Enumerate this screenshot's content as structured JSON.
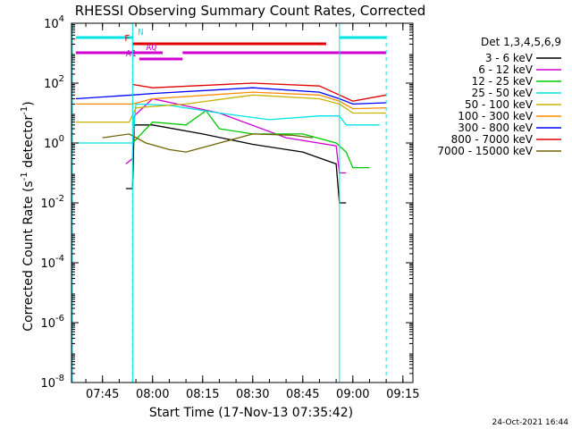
{
  "chart_data": {
    "type": "line",
    "title": "RHESSI Observing Summary Count Rates, Corrected",
    "xlabel": "Start Time (17-Nov-13 07:35:42)",
    "ylabel": "Corrected Count Rate (s^-1 detector^-1)",
    "ylabel_main": "Corrected Count Rate (s",
    "ylabel_sup": "-1",
    "ylabel_mid": " detector",
    "ylabel_sup2": "-1",
    "ylabel_end": ")",
    "scale": "log",
    "xlim": [
      "07:35:42",
      "09:18:00"
    ],
    "ylim": [
      1e-08,
      10000
    ],
    "xticks": [
      "07:45",
      "08:00",
      "08:15",
      "08:30",
      "08:45",
      "09:00",
      "09:15"
    ],
    "yticks": [
      {
        "value": 10000,
        "base": "10",
        "exp": "4"
      },
      {
        "value": 100,
        "base": "10",
        "exp": "2"
      },
      {
        "value": 1,
        "base": "10",
        "exp": "0"
      },
      {
        "value": 0.01,
        "base": "10",
        "exp": "-2"
      },
      {
        "value": 0.0001,
        "base": "10",
        "exp": "-4"
      },
      {
        "value": 1e-06,
        "base": "10",
        "exp": "-6"
      },
      {
        "value": 1e-08,
        "base": "10",
        "exp": "-8"
      }
    ],
    "legend_title": "Det 1,3,4,5,6,9",
    "legend_position": "right",
    "night_boundaries": [
      "07:54:00",
      "08:56:00"
    ],
    "night_dashed": [
      "07:54:00",
      "09:10:00"
    ],
    "flag_bars": [
      {
        "label": "N",
        "color": "#00e5e5",
        "segments": [
          [
            "07:37:00",
            "07:54:00"
          ],
          [
            "08:56:00",
            "09:10:00"
          ]
        ]
      },
      {
        "label": "F",
        "color": "#e00000",
        "segments": [
          [
            "07:54:00",
            "08:52:00"
          ]
        ]
      },
      {
        "label": "AQ",
        "color": "#d000d0",
        "segments": [
          [
            "07:37:00",
            "08:03:00"
          ],
          [
            "08:09:00",
            "09:10:00"
          ]
        ]
      },
      {
        "label": "A1",
        "color": "#d000d0",
        "segments": [
          [
            "07:56:00",
            "08:09:00"
          ]
        ]
      }
    ],
    "series": [
      {
        "name": "3 - 6 keV",
        "color": "#000000",
        "points": [
          [
            "07:52:00",
            0.03
          ],
          [
            "07:54:00",
            0.03
          ],
          [
            "07:54:30",
            4.0
          ],
          [
            "08:00:00",
            4.0
          ],
          [
            "08:15:00",
            2.0
          ],
          [
            "08:30:00",
            0.9
          ],
          [
            "08:45:00",
            0.5
          ],
          [
            "08:55:00",
            0.2
          ],
          [
            "08:56:00",
            0.01
          ],
          [
            "08:58:00",
            0.01
          ]
        ]
      },
      {
        "name": "6 - 12 keV",
        "color": "#d000d0",
        "points": [
          [
            "07:52:00",
            0.2
          ],
          [
            "07:54:00",
            0.3
          ],
          [
            "07:54:30",
            8.0
          ],
          [
            "08:00:00",
            30.0
          ],
          [
            "08:20:00",
            10.0
          ],
          [
            "08:40:00",
            1.5
          ],
          [
            "08:55:00",
            0.8
          ],
          [
            "08:56:00",
            0.1
          ],
          [
            "08:58:00",
            0.1
          ]
        ]
      },
      {
        "name": "12 - 25 keV",
        "color": "#00c800",
        "points": [
          [
            "07:54:00",
            1.0
          ],
          [
            "08:00:00",
            5.0
          ],
          [
            "08:10:00",
            4.0
          ],
          [
            "08:16:00",
            12.0
          ],
          [
            "08:20:00",
            3.0
          ],
          [
            "08:30:00",
            2.0
          ],
          [
            "08:45:00",
            2.0
          ],
          [
            "08:55:00",
            1.0
          ],
          [
            "08:58:00",
            0.5
          ],
          [
            "09:00:00",
            0.15
          ],
          [
            "09:05:00",
            0.15
          ]
        ]
      },
      {
        "name": "25 - 50 keV",
        "color": "#00e5e5",
        "points": [
          [
            "07:37:00",
            1.0
          ],
          [
            "07:54:00",
            1.0
          ],
          [
            "07:55:00",
            20.0
          ],
          [
            "08:05:00",
            18.0
          ],
          [
            "08:20:00",
            10.0
          ],
          [
            "08:35:00",
            6.0
          ],
          [
            "08:50:00",
            8.0
          ],
          [
            "08:56:00",
            8.0
          ],
          [
            "08:58:00",
            4.0
          ],
          [
            "09:08:00",
            4.0
          ]
        ]
      },
      {
        "name": "50 - 100 keV",
        "color": "#c8b400",
        "points": [
          [
            "07:37:00",
            5.0
          ],
          [
            "07:53:00",
            5.0
          ],
          [
            "07:55:00",
            15.0
          ],
          [
            "08:10:00",
            20.0
          ],
          [
            "08:30:00",
            40.0
          ],
          [
            "08:50:00",
            30.0
          ],
          [
            "08:56:00",
            20.0
          ],
          [
            "09:00:00",
            10.0
          ],
          [
            "09:10:00",
            10.0
          ]
        ]
      },
      {
        "name": "100 - 300 keV",
        "color": "#ff8c00",
        "points": [
          [
            "07:37:00",
            20.0
          ],
          [
            "07:54:00",
            20.0
          ],
          [
            "08:00:00",
            30.0
          ],
          [
            "08:30:00",
            50.0
          ],
          [
            "08:50:00",
            40.0
          ],
          [
            "08:56:00",
            25.0
          ],
          [
            "09:00:00",
            14.0
          ],
          [
            "09:10:00",
            15.0
          ]
        ]
      },
      {
        "name": "300 - 800 keV",
        "color": "#0000ff",
        "points": [
          [
            "07:37:00",
            30.0
          ],
          [
            "07:54:00",
            40.0
          ],
          [
            "08:00:00",
            45.0
          ],
          [
            "08:30:00",
            70.0
          ],
          [
            "08:50:00",
            50.0
          ],
          [
            "08:56:00",
            30.0
          ],
          [
            "09:00:00",
            20.0
          ],
          [
            "09:10:00",
            22.0
          ]
        ]
      },
      {
        "name": "800 - 7000 keV",
        "color": "#e00000",
        "points": [
          [
            "07:54:00",
            90.0
          ],
          [
            "08:00:00",
            70.0
          ],
          [
            "08:30:00",
            100.0
          ],
          [
            "08:50:00",
            80.0
          ],
          [
            "08:56:00",
            40.0
          ],
          [
            "09:00:00",
            25.0
          ],
          [
            "09:10:00",
            40.0
          ]
        ]
      },
      {
        "name": "7000 - 15000 keV",
        "color": "#6e6400",
        "points": [
          [
            "07:45:00",
            1.5
          ],
          [
            "07:53:00",
            2.0
          ],
          [
            "07:58:00",
            1.0
          ],
          [
            "08:05:00",
            0.6
          ],
          [
            "08:10:00",
            0.5
          ],
          [
            "08:30:00",
            2.0
          ],
          [
            "08:42:00",
            1.8
          ],
          [
            "08:48:00",
            1.5
          ]
        ]
      }
    ]
  },
  "footer": {
    "date_stamp": "24-Oct-2021 16:44"
  }
}
